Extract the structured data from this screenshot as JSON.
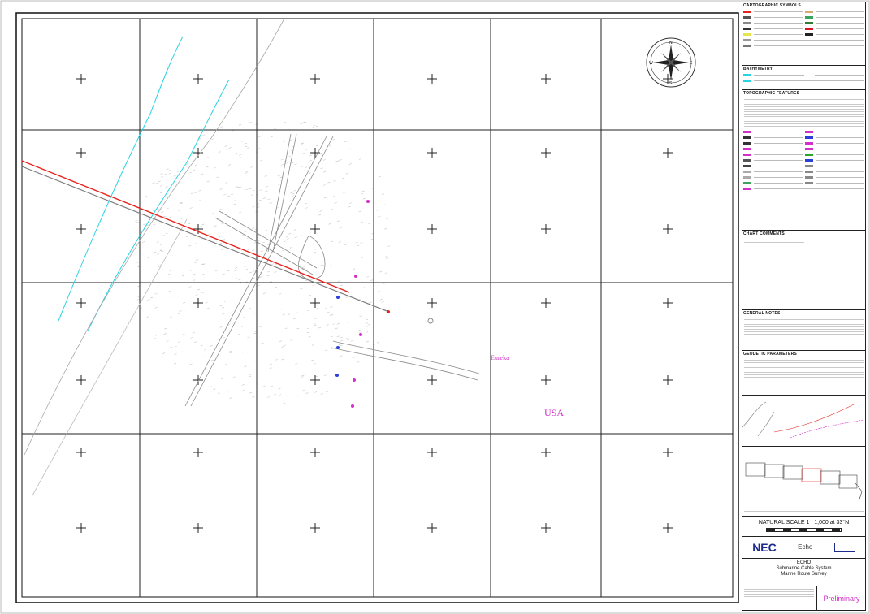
{
  "map": {
    "labels": {
      "eureka": "Eureka",
      "usa": "USA"
    },
    "compass": {
      "north": "N",
      "south": "S",
      "east": "E",
      "west": "W"
    },
    "colors": {
      "route_primary": "#e8221b",
      "route_secondary": "#7c7c7c",
      "contour": "#29d3e2",
      "label_magenta": "#d230c8",
      "feature_blue": "#2b3fd6",
      "grid": "#222222"
    }
  },
  "title_block": {
    "legend_heading": "CARTOGRAPHIC SYMBOLS",
    "bathymetry_heading": "BATHYMETRY",
    "topographic_heading": "TOPOGRAPHIC FEATURES",
    "chart_comments_heading": "CHART COMMENTS",
    "general_notes_heading": "GENERAL NOTES",
    "geodetic_heading": "GEODETIC PARAMETERS",
    "scale_text": "NATURAL SCALE 1 : 1,000 at 33°N",
    "client_logo": "NEC",
    "partner_logo": "Echo",
    "project_title": "ECHO",
    "project_line1": "Submarine Cable System",
    "project_line2": "Marine Route Survey",
    "status": "Preliminary"
  }
}
